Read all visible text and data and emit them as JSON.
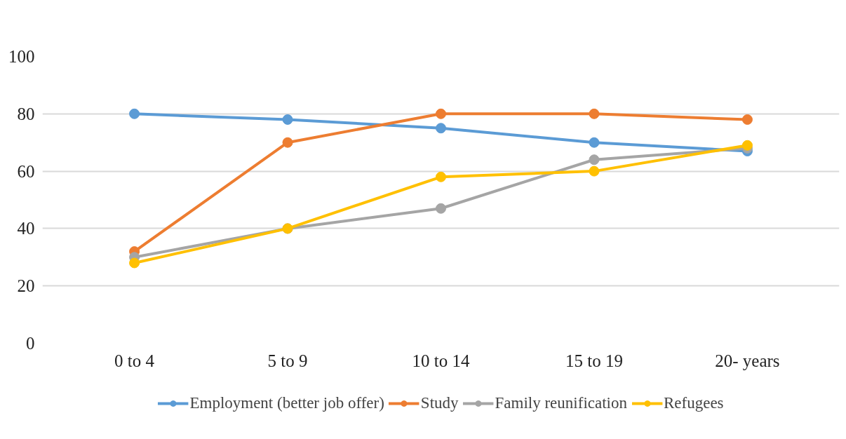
{
  "chart_data": {
    "type": "line",
    "categories": [
      "0 to 4",
      "5 to 9",
      "10 to 14",
      "15 to 19",
      "20- years"
    ],
    "series": [
      {
        "name": "Employment (better job offer)",
        "color": "#5b9bd5",
        "values": [
          80,
          78,
          75,
          70,
          67
        ]
      },
      {
        "name": "Study",
        "color": "#ed7d31",
        "values": [
          32,
          70,
          80,
          80,
          78
        ]
      },
      {
        "name": "Family reunification",
        "color": "#a5a5a5",
        "values": [
          30,
          40,
          47,
          64,
          68
        ]
      },
      {
        "name": "Refugees",
        "color": "#ffc000",
        "values": [
          28,
          40,
          58,
          60,
          69
        ]
      }
    ],
    "ylim": [
      0,
      100
    ],
    "yticks": [
      0,
      20,
      40,
      60,
      80,
      100
    ],
    "grid": "y",
    "legend": "bottom",
    "marker": "circle",
    "line_style": "solid"
  }
}
